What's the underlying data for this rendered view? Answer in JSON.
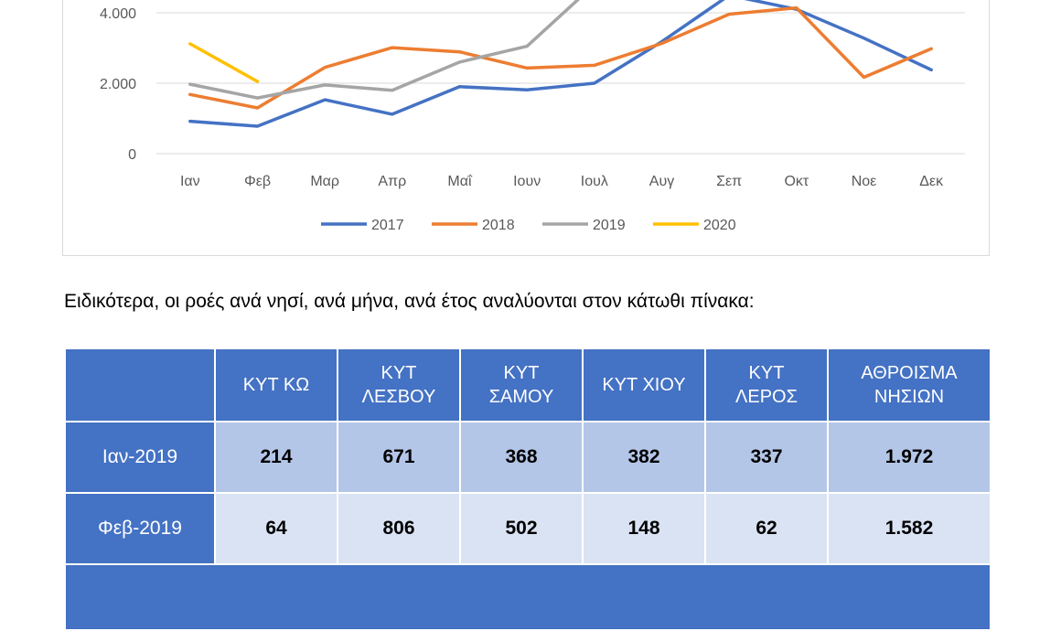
{
  "chart_data": {
    "type": "line",
    "categories": [
      "Ιαν",
      "Φεβ",
      "Μαρ",
      "Απρ",
      "Μαΐ",
      "Ιουν",
      "Ιουλ",
      "Αυγ",
      "Σεπ",
      "Οκτ",
      "Νοε",
      "Δεκ"
    ],
    "y_ticks": [
      "0",
      "2.000",
      "4.000"
    ],
    "ylim": [
      0,
      4700
    ],
    "grid": true,
    "legend_position": "bottom",
    "series": [
      {
        "name": "2017",
        "color": "#4472c4",
        "values": [
          920,
          780,
          1530,
          1120,
          1900,
          1810,
          2000,
          3180,
          4500,
          4100,
          3280,
          2380
        ]
      },
      {
        "name": "2018",
        "color": "#ed7d31",
        "values": [
          1680,
          1300,
          2450,
          3010,
          2890,
          2430,
          2510,
          3130,
          3960,
          4140,
          2170,
          2980
        ]
      },
      {
        "name": "2019",
        "color": "#a5a5a5",
        "values": [
          1972,
          1582,
          1950,
          1800,
          2600,
          3050,
          4800,
          null,
          null,
          null,
          null,
          null
        ]
      },
      {
        "name": "2020",
        "color": "#ffc000",
        "values": [
          3120,
          2050,
          null,
          null,
          null,
          null,
          null,
          null,
          null,
          null,
          null,
          null
        ]
      }
    ]
  },
  "paragraph": "Ειδικότερα, οι ροές ανά νησί, ανά μήνα, ανά έτος αναλύονται στον κάτωθι πίνακα:",
  "table": {
    "headers": [
      {
        "l1": "",
        "l2": ""
      },
      {
        "l1": "ΚΥΤ ΚΩ",
        "l2": ""
      },
      {
        "l1": "ΚΥΤ",
        "l2": "ΛΕΣΒΟΥ"
      },
      {
        "l1": "ΚΥΤ",
        "l2": "ΣΑΜΟΥ"
      },
      {
        "l1": "ΚΥΤ ΧΙΟΥ",
        "l2": ""
      },
      {
        "l1": "ΚΥΤ",
        "l2": "ΛΕΡΟΣ"
      },
      {
        "l1": "ΑΘΡΟΙΣΜΑ",
        "l2": "ΝΗΣΙΩΝ"
      }
    ],
    "rows": [
      {
        "label": "Ιαν-2019",
        "values": [
          "214",
          "671",
          "368",
          "382",
          "337",
          "1.972"
        ]
      },
      {
        "label": "Φεβ-2019",
        "values": [
          "64",
          "806",
          "502",
          "148",
          "62",
          "1.582"
        ]
      }
    ]
  }
}
